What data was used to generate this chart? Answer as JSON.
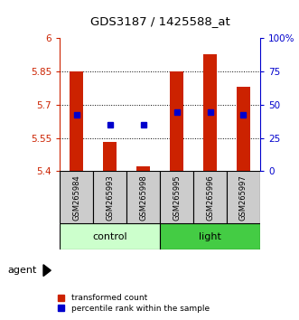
{
  "title": "GDS3187 / 1425588_at",
  "samples": [
    "GSM265984",
    "GSM265993",
    "GSM265998",
    "GSM265995",
    "GSM265996",
    "GSM265997"
  ],
  "bar_bottom": 5.4,
  "bar_tops": [
    5.85,
    5.53,
    5.42,
    5.85,
    5.93,
    5.78
  ],
  "blue_dots": [
    5.655,
    5.61,
    5.61,
    5.665,
    5.668,
    5.655
  ],
  "ylim_left": [
    5.4,
    6.0
  ],
  "ylim_right": [
    0,
    100
  ],
  "yticks_left": [
    5.4,
    5.55,
    5.7,
    5.85,
    6.0
  ],
  "yticks_right": [
    0,
    25,
    50,
    75,
    100
  ],
  "ytick_labels_left": [
    "5.4",
    "5.55",
    "5.7",
    "5.85",
    "6"
  ],
  "ytick_labels_right": [
    "0",
    "25",
    "50",
    "75",
    "100%"
  ],
  "bar_color": "#cc2200",
  "dot_color": "#0000cc",
  "control_bg": "#ccffcc",
  "light_bg": "#44cc44",
  "sample_bg": "#cccccc",
  "left_tick_color": "#cc2200",
  "right_tick_color": "#0000cc"
}
